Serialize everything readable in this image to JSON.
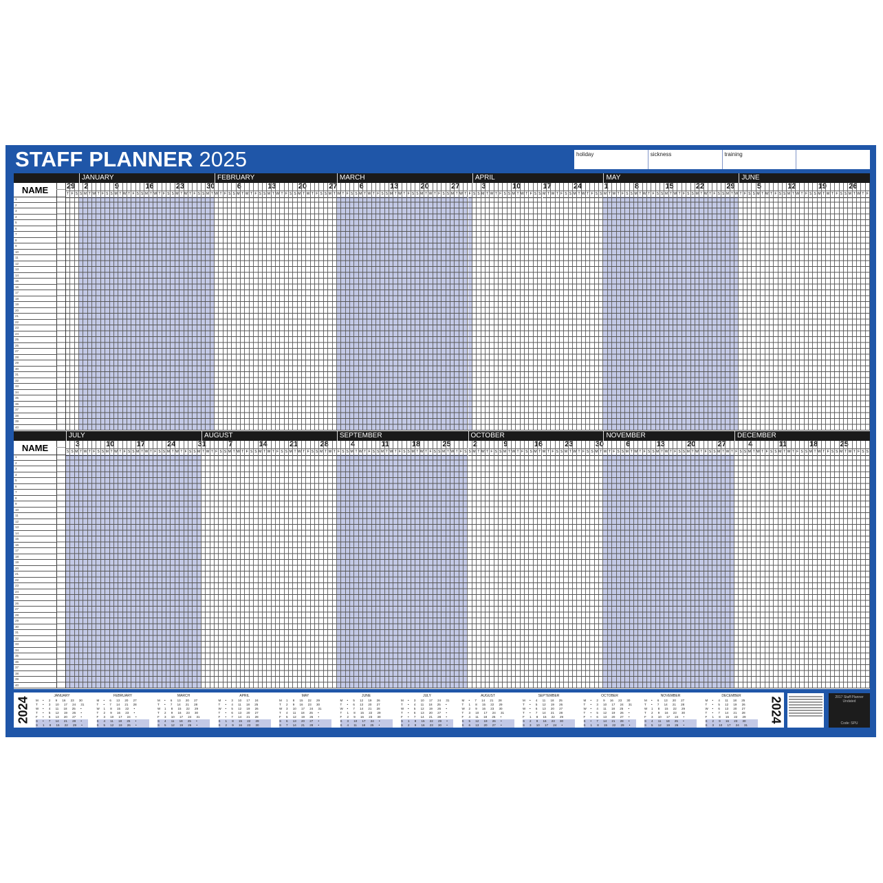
{
  "header": {
    "title": "STAFF PLANNER",
    "year": "2025"
  },
  "legend": [
    "holiday",
    "sickness",
    "training",
    ""
  ],
  "colors": {
    "panel": "#1f56a8",
    "shaded_month": "#c3c9e6",
    "header_bar": "#1a1a1a"
  },
  "name_header": "NAME",
  "row_numbers": [
    1,
    2,
    3,
    4,
    5,
    6,
    7,
    8,
    9,
    10,
    11,
    12,
    13,
    14,
    15,
    16,
    17,
    18,
    19,
    20,
    21,
    22,
    23,
    24,
    25,
    26,
    27,
    28,
    29,
    30,
    31,
    32,
    33,
    34,
    35,
    36,
    37,
    38,
    39,
    40
  ],
  "day_letters": [
    "M",
    "T",
    "W",
    "T",
    "F",
    "S",
    "S"
  ],
  "sections": [
    {
      "start_day": "Thursday",
      "lead": {
        "days": 3,
        "week_labels": [
          "29"
        ]
      },
      "months": [
        {
          "name": "JANUARY",
          "days": 31,
          "shaded": true,
          "week_labels": [
            "2",
            "9",
            "16",
            "23",
            "30"
          ]
        },
        {
          "name": "FEBRUARY",
          "days": 28,
          "shaded": false,
          "week_labels": [
            "6",
            "13",
            "20",
            "27"
          ]
        },
        {
          "name": "MARCH",
          "days": 31,
          "shaded": true,
          "week_labels": [
            "6",
            "13",
            "20",
            "27"
          ]
        },
        {
          "name": "APRIL",
          "days": 30,
          "shaded": false,
          "week_labels": [
            "3",
            "10",
            "17",
            "24"
          ]
        },
        {
          "name": "MAY",
          "days": 31,
          "shaded": true,
          "week_labels": [
            "1",
            "8",
            "15",
            "22",
            "29"
          ]
        },
        {
          "name": "JUNE",
          "days": 30,
          "shaded": false,
          "week_labels": [
            "5",
            "12",
            "19",
            "26"
          ]
        }
      ]
    },
    {
      "start_day": "Saturday",
      "lead": null,
      "months": [
        {
          "name": "JULY",
          "days": 31,
          "shaded": true,
          "week_labels": [
            "3",
            "10",
            "17",
            "24",
            "31"
          ]
        },
        {
          "name": "AUGUST",
          "days": 31,
          "shaded": false,
          "week_labels": [
            "7",
            "14",
            "21",
            "28"
          ]
        },
        {
          "name": "SEPTEMBER",
          "days": 30,
          "shaded": true,
          "week_labels": [
            "4",
            "11",
            "18",
            "25"
          ]
        },
        {
          "name": "OCTOBER",
          "days": 31,
          "shaded": false,
          "week_labels": [
            "2",
            "9",
            "16",
            "23",
            "30"
          ]
        },
        {
          "name": "NOVEMBER",
          "days": 30,
          "shaded": true,
          "week_labels": [
            "6",
            "13",
            "20",
            "27"
          ]
        },
        {
          "name": "DECEMBER",
          "days": 31,
          "shaded": false,
          "week_labels": [
            "4",
            "11",
            "18",
            "25"
          ]
        }
      ]
    }
  ],
  "mini_calendars": {
    "year_label": "2024",
    "weekday_labels": [
      "M",
      "T",
      "W",
      "T",
      "F",
      "S",
      "S"
    ],
    "months": [
      {
        "name": "JANUARY",
        "rows": [
          "• 2 9 16 23 30",
          "• 3 10 17 24 31",
          "• 4 11 18 25 •",
          "• 5 12 19 26 •",
          "• 6 13 20 27 •",
          "• 7 14 21 28 •",
          "1 8 15 22 29 •"
        ]
      },
      {
        "name": "FEBRUARY",
        "rows": [
          "• 6 13 20 27",
          "• 7 14 21 28",
          "1 8 15 22 •",
          "2 9 16 23 •",
          "3 10 17 24 •",
          "4 11 18 25 •",
          "5 12 19 26 •"
        ]
      },
      {
        "name": "MARCH",
        "rows": [
          "• 6 13 20 27",
          "• 7 14 21 28",
          "1 8 15 22 29",
          "2 9 16 23 30",
          "3 10 17 24 31",
          "4 11 18 25 •",
          "5 12 19 26 •"
        ]
      },
      {
        "name": "APRIL",
        "rows": [
          "• 3 10 17 24",
          "• 4 11 18 25",
          "• 5 12 19 26",
          "• 6 13 20 27",
          "• 7 14 21 28",
          "1 8 15 22 29",
          "2 9 16 23 30"
        ]
      },
      {
        "name": "MAY",
        "rows": [
          "1 8 15 22 29",
          "2 9 16 23 30",
          "3 10 17 24 31",
          "4 11 18 25 •",
          "5 12 19 26 •",
          "6 13 20 27 •",
          "7 14 21 28 •"
        ]
      },
      {
        "name": "JUNE",
        "rows": [
          "• 5 12 19 26",
          "• 6 13 20 27",
          "• 7 14 21 28",
          "1 8 15 22 29",
          "2 9 16 23 30",
          "3 10 17 24 •",
          "4 11 18 25 •"
        ]
      },
      {
        "name": "JULY",
        "rows": [
          "• 3 10 17 24 31",
          "• 4 11 18 25 •",
          "• 5 12 19 26 •",
          "• 6 13 20 27 •",
          "• 7 14 21 28 •",
          "1 8 15 22 29 •",
          "2 9 16 23 30 •"
        ]
      },
      {
        "name": "AUGUST",
        "rows": [
          "• 7 14 21 28",
          "1 8 15 22 29",
          "2 9 16 23 30",
          "3 10 17 24 31",
          "4 11 18 25 •",
          "5 12 19 26 •",
          "6 13 20 27 •"
        ]
      },
      {
        "name": "SEPTEMBER",
        "rows": [
          "• 4 11 18 25",
          "• 5 12 19 26",
          "• 6 13 20 27",
          "• 7 14 21 28",
          "1 8 15 22 29",
          "2 9 16 23 30",
          "3 10 17 24 •"
        ]
      },
      {
        "name": "OCTOBER",
        "rows": [
          "• 2 9 16 23 30",
          "• 3 10 17 24 31",
          "• 4 11 18 25 •",
          "• 5 12 19 26 •",
          "• 6 13 20 27 •",
          "• 7 14 21 28 •",
          "1 8 15 22 29 •"
        ]
      },
      {
        "name": "NOVEMBER",
        "rows": [
          "• 6 13 20 27",
          "• 7 14 21 28",
          "1 8 15 22 29",
          "2 9 16 23 30",
          "3 10 17 24 •",
          "4 11 18 25 •",
          "5 12 19 26 •"
        ]
      },
      {
        "name": "DECEMBER",
        "rows": [
          "• 4 11 18 25",
          "• 5 12 19 26",
          "• 6 13 20 27",
          "• 7 14 21 28",
          "1 8 15 22 29",
          "2 9 16 23 30",
          "3 10 17 24 31"
        ]
      }
    ]
  },
  "product_box": {
    "line1": "2017 Staff Planner Undated",
    "code": "Code: SPU"
  }
}
